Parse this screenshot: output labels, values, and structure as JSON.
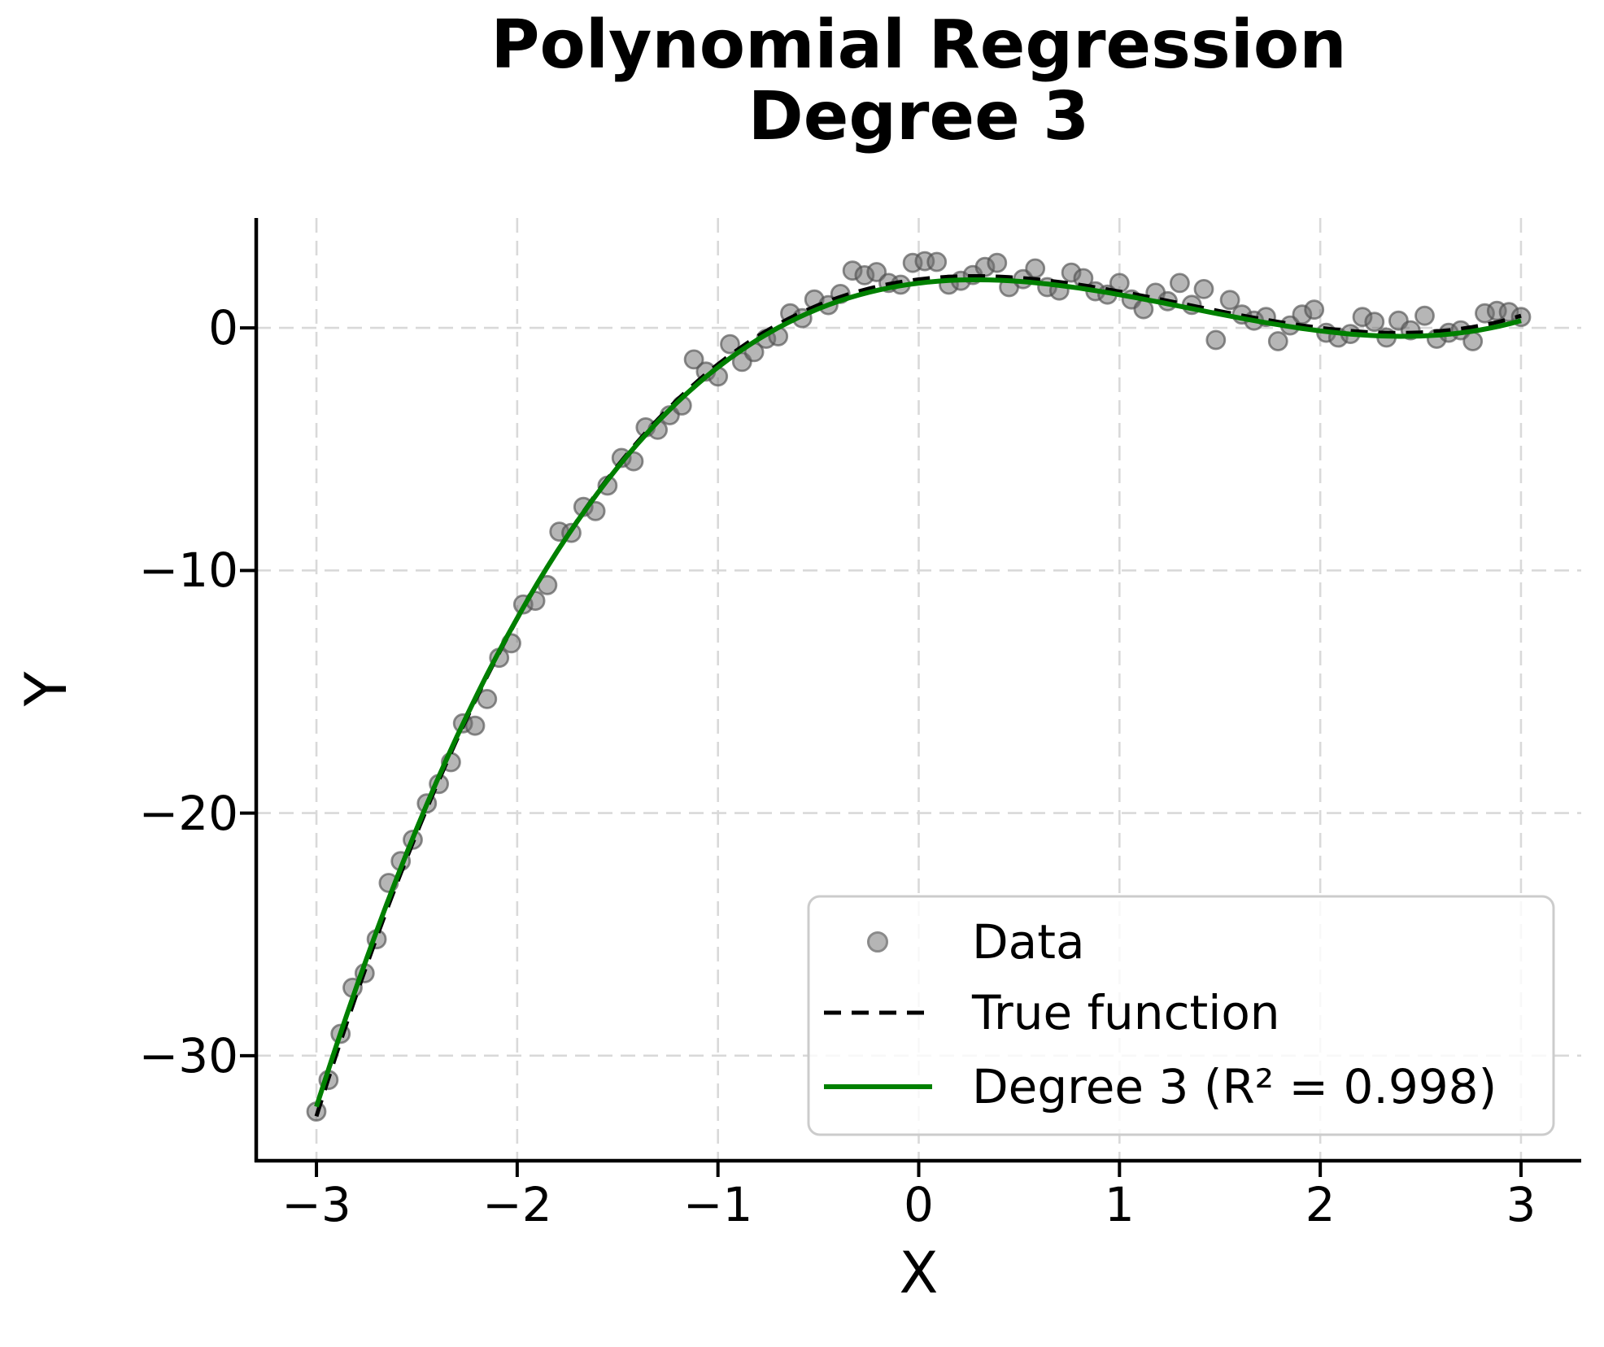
{
  "chart_data": {
    "type": "scatter",
    "title_line1": "Polynomial Regression",
    "title_line2": "Degree 3",
    "xlabel": "X",
    "ylabel": "Y",
    "xlim": [
      -3.3,
      3.3
    ],
    "ylim": [
      -34.33,
      4.53
    ],
    "x_ticks": [
      -3,
      -2,
      -1,
      0,
      1,
      2,
      3
    ],
    "x_tick_labels": [
      "−3",
      "−2",
      "−1",
      "0",
      "1",
      "2",
      "3"
    ],
    "y_ticks": [
      0,
      -10,
      -20,
      -30
    ],
    "y_tick_labels": [
      "0",
      "−10",
      "−20",
      "−30"
    ],
    "grid": true,
    "legend_position": "lower right",
    "series": [
      {
        "label": "Data",
        "kind": "scatter",
        "marker_fill": "rgba(110,110,110,0.5)",
        "marker_edge": "rgba(80,80,80,0.65)",
        "points": [
          [
            -3.0,
            -32.3
          ],
          [
            -2.94,
            -31.0
          ],
          [
            -2.88,
            -29.1
          ],
          [
            -2.82,
            -27.2
          ],
          [
            -2.76,
            -26.6
          ],
          [
            -2.7,
            -25.2
          ],
          [
            -2.64,
            -22.88
          ],
          [
            -2.58,
            -21.98
          ],
          [
            -2.52,
            -21.1
          ],
          [
            -2.45,
            -19.6
          ],
          [
            -2.39,
            -18.8
          ],
          [
            -2.33,
            -17.9
          ],
          [
            -2.27,
            -16.3
          ],
          [
            -2.21,
            -16.4
          ],
          [
            -2.15,
            -15.3
          ],
          [
            -2.09,
            -13.6
          ],
          [
            -2.03,
            -13.0
          ],
          [
            -1.97,
            -11.4
          ],
          [
            -1.91,
            -11.25
          ],
          [
            -1.85,
            -10.6
          ],
          [
            -1.79,
            -8.4
          ],
          [
            -1.73,
            -8.45
          ],
          [
            -1.67,
            -7.38
          ],
          [
            -1.61,
            -7.55
          ],
          [
            -1.55,
            -6.5
          ],
          [
            -1.48,
            -5.36
          ],
          [
            -1.42,
            -5.5
          ],
          [
            -1.36,
            -4.1
          ],
          [
            -1.3,
            -4.2
          ],
          [
            -1.24,
            -3.6
          ],
          [
            -1.18,
            -3.2
          ],
          [
            -1.12,
            -1.3
          ],
          [
            -1.06,
            -1.8
          ],
          [
            -1.0,
            -2.0
          ],
          [
            -0.94,
            -0.67
          ],
          [
            -0.88,
            -1.4
          ],
          [
            -0.82,
            -1.0
          ],
          [
            -0.76,
            -0.45
          ],
          [
            -0.7,
            -0.35
          ],
          [
            -0.64,
            0.6
          ],
          [
            -0.58,
            0.4
          ],
          [
            -0.52,
            1.17
          ],
          [
            -0.45,
            0.94
          ],
          [
            -0.39,
            1.4
          ],
          [
            -0.33,
            2.36
          ],
          [
            -0.27,
            2.17
          ],
          [
            -0.21,
            2.3
          ],
          [
            -0.15,
            1.85
          ],
          [
            -0.09,
            1.78
          ],
          [
            -0.03,
            2.68
          ],
          [
            0.03,
            2.75
          ],
          [
            0.09,
            2.72
          ],
          [
            0.15,
            1.78
          ],
          [
            0.21,
            1.94
          ],
          [
            0.27,
            2.18
          ],
          [
            0.33,
            2.51
          ],
          [
            0.39,
            2.68
          ],
          [
            0.45,
            1.68
          ],
          [
            0.52,
            2.01
          ],
          [
            0.58,
            2.45
          ],
          [
            0.64,
            1.68
          ],
          [
            0.7,
            1.54
          ],
          [
            0.76,
            2.28
          ],
          [
            0.82,
            2.05
          ],
          [
            0.88,
            1.51
          ],
          [
            0.94,
            1.37
          ],
          [
            1.0,
            1.85
          ],
          [
            1.06,
            1.17
          ],
          [
            1.12,
            0.77
          ],
          [
            1.18,
            1.45
          ],
          [
            1.24,
            1.1
          ],
          [
            1.3,
            1.85
          ],
          [
            1.36,
            0.95
          ],
          [
            1.42,
            1.6
          ],
          [
            1.48,
            -0.5
          ],
          [
            1.55,
            1.15
          ],
          [
            1.61,
            0.55
          ],
          [
            1.67,
            0.3
          ],
          [
            1.73,
            0.45
          ],
          [
            1.79,
            -0.55
          ],
          [
            1.85,
            0.1
          ],
          [
            1.91,
            0.55
          ],
          [
            1.97,
            0.75
          ],
          [
            2.03,
            -0.2
          ],
          [
            2.09,
            -0.4
          ],
          [
            2.15,
            -0.25
          ],
          [
            2.21,
            0.45
          ],
          [
            2.27,
            0.25
          ],
          [
            2.33,
            -0.4
          ],
          [
            2.39,
            0.3
          ],
          [
            2.45,
            -0.1
          ],
          [
            2.52,
            0.5
          ],
          [
            2.58,
            -0.45
          ],
          [
            2.64,
            -0.2
          ],
          [
            2.7,
            -0.1
          ],
          [
            2.76,
            -0.55
          ],
          [
            2.82,
            0.6
          ],
          [
            2.88,
            0.7
          ],
          [
            2.94,
            0.65
          ],
          [
            3.0,
            0.45
          ]
        ]
      },
      {
        "label": "True function",
        "kind": "line",
        "line_style": "dashed",
        "color": "#000000",
        "poly_coeffs": [
          0.5,
          -2.0,
          1.0,
          2.0
        ],
        "x_range": [
          -3,
          3
        ]
      },
      {
        "label": "Degree 3 (R² = 0.998)",
        "kind": "line",
        "line_style": "solid",
        "color": "#008000",
        "poly_coeffs": [
          0.488,
          -1.972,
          1.008,
          1.845
        ],
        "x_range": [
          -3,
          3
        ],
        "r_squared": 0.998
      }
    ]
  },
  "colors": {
    "background": "#ffffff",
    "grid": "#d9d9d9",
    "spine": "#000000",
    "legend_border": "#cccccc",
    "legend_background": "rgba(255,255,255,0.8)",
    "legend_dot_fill": "#b5b5b5",
    "legend_dot_edge": "#8a8a8a",
    "fit_green": "#008000",
    "true_black": "#000000"
  }
}
